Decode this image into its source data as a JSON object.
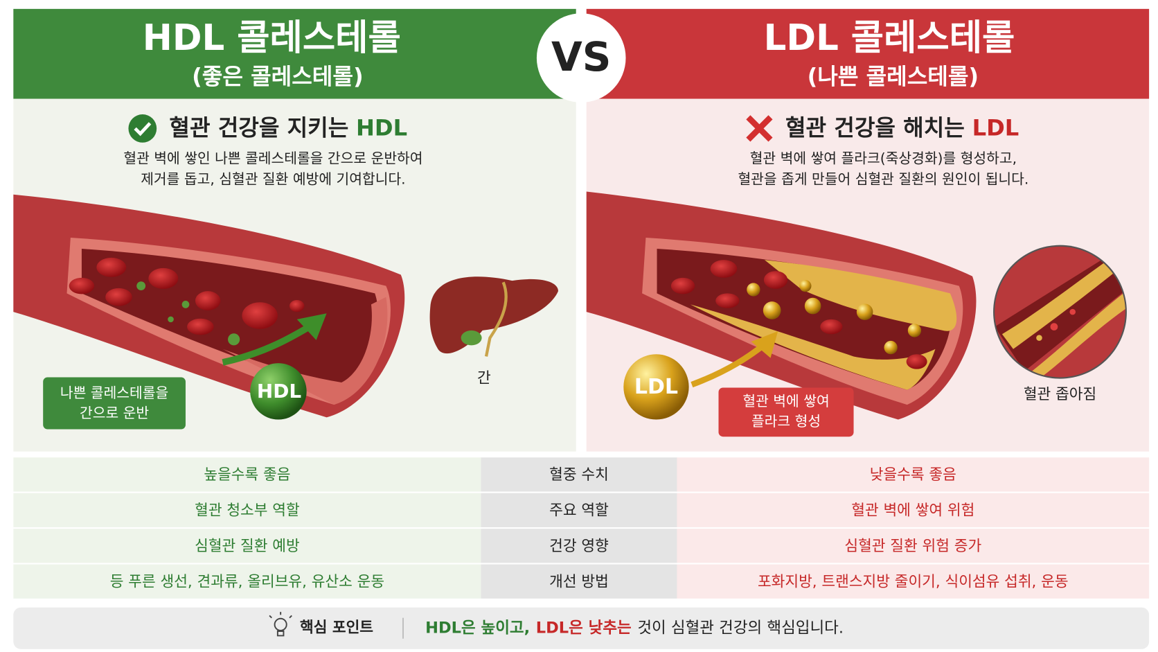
{
  "hdl": {
    "title": "HDL 콜레스테롤",
    "subtitle": "(좋은 콜레스테롤)",
    "heading_prefix": "혈관 건강을 지키는",
    "heading_em": "HDL",
    "description": [
      "혈관 벽에 쌓인 나쁜 콜레스테롤을 간으로 운반하여",
      "제거를 돕고, 심혈관 질환 예방에 기여합니다."
    ],
    "callout": [
      "나쁜 콜레스테롤을",
      "간으로 운반"
    ],
    "particle": "HDL",
    "organ_label": "간"
  },
  "vs": "VS",
  "ldl": {
    "title": "LDL 콜레스테롤",
    "subtitle": "(나쁜 콜레스테롤)",
    "heading_prefix": "혈관 건강을 해치는",
    "heading_em": "LDL",
    "description": [
      "혈관 벽에 쌓여 플라크(죽상경화)를 형성하고,",
      "혈관을 좁게 만들어 심혈관 질환의 원인이 됩니다."
    ],
    "callout": [
      "혈관 벽에 쌓여",
      "플라크 형성"
    ],
    "particle": "LDL",
    "inset_label": "혈관 좁아짐"
  },
  "table": {
    "rows": [
      [
        "높을수록 좋음",
        "혈중 수치",
        "낮을수록 좋음"
      ],
      [
        "혈관 청소부 역할",
        "주요 역할",
        "혈관 벽에 쌓여 위험"
      ],
      [
        "심혈관 질환 예방",
        "건강 영향",
        "심혈관 질환 위험 증가"
      ],
      [
        "등 푸른 생선, 견과류, 올리브유, 유산소 운동",
        "개선 방법",
        "포화지방, 트랜스지방 줄이기, 식이섬유 섭취, 운동"
      ]
    ]
  },
  "footer": {
    "label": "핵심 포인트",
    "hdl_part": "HDL은 높이고,",
    "ldl_part": "LDL은 낮추는",
    "rest": "것이 심혈관 건강의 핵심입니다."
  }
}
